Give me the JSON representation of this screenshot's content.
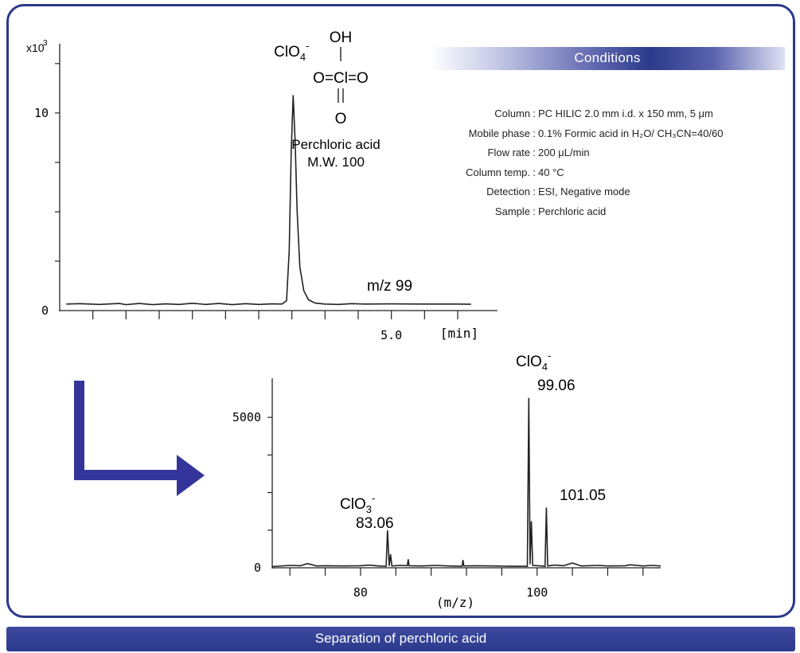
{
  "footer": {
    "title": "Separation of perchloric acid"
  },
  "structure": {
    "top_label": "OH",
    "middle_label": "O=Cl=O",
    "bottom_label": "O",
    "name": "Perchloric acid",
    "mw": "M.W. 100"
  },
  "conditions_title": "Conditions",
  "conditions": [
    {
      "label": "Column",
      "value": "PC HILIC 2.0 mm i.d. x 150 mm, 5 μm"
    },
    {
      "label": "Mobile phase",
      "value": "0.1% Formic acid in H₂O/ CH₃CN=40/60"
    },
    {
      "label": "Flow rate",
      "value": "200 μL/min"
    },
    {
      "label": "Column temp.",
      "value": "40 °C"
    },
    {
      "label": "Detection",
      "value": "ESI, Negative mode"
    },
    {
      "label": "Sample",
      "value": "Perchloric acid"
    }
  ],
  "colors": {
    "frame": "#2b3a8c",
    "arrow": "#34359a",
    "trace": "#222222"
  },
  "chart_data": [
    {
      "type": "line",
      "xlabel": "[min]",
      "ylabel": "",
      "y_multiplier_label": "x10",
      "y_multiplier_exp": "3",
      "x_ticks_labeled": [
        {
          "value": 5.0,
          "label": "5.0"
        }
      ],
      "y_ticks_labeled": [
        {
          "value": 0,
          "label": "0"
        },
        {
          "value": 10,
          "label": "10"
        }
      ],
      "xlim": [
        0,
        6.6
      ],
      "ylim": [
        0,
        13.5
      ],
      "trace_label": "m/z 99",
      "peaks": [
        {
          "label": "ClO",
          "sub": "4",
          "sup": "-",
          "x": 3.53,
          "y": 10.9
        }
      ],
      "series": [
        {
          "values": [
            [
              0.1,
              0.33
            ],
            [
              0.3,
              0.35
            ],
            [
              0.6,
              0.31
            ],
            [
              0.9,
              0.36
            ],
            [
              1.0,
              0.3
            ],
            [
              1.2,
              0.36
            ],
            [
              1.4,
              0.3
            ],
            [
              1.6,
              0.34
            ],
            [
              1.8,
              0.31
            ],
            [
              2.0,
              0.37
            ],
            [
              2.2,
              0.31
            ],
            [
              2.4,
              0.36
            ],
            [
              2.6,
              0.3
            ],
            [
              2.8,
              0.35
            ],
            [
              3.0,
              0.31
            ],
            [
              3.2,
              0.34
            ],
            [
              3.35,
              0.33
            ],
            [
              3.42,
              0.5
            ],
            [
              3.46,
              3.0
            ],
            [
              3.49,
              8.0
            ],
            [
              3.52,
              10.9
            ],
            [
              3.55,
              8.5
            ],
            [
              3.58,
              5.0
            ],
            [
              3.62,
              2.2
            ],
            [
              3.68,
              1.0
            ],
            [
              3.75,
              0.55
            ],
            [
              3.85,
              0.38
            ],
            [
              4.0,
              0.33
            ],
            [
              4.2,
              0.31
            ],
            [
              4.4,
              0.35
            ],
            [
              4.6,
              0.33
            ],
            [
              5.0,
              0.34
            ],
            [
              5.5,
              0.33
            ],
            [
              6.0,
              0.33
            ],
            [
              6.2,
              0.32
            ]
          ]
        }
      ]
    },
    {
      "type": "line",
      "xlabel": "(m/z)",
      "ylabel": "",
      "x_ticks_labeled": [
        {
          "value": 80,
          "label": "80"
        },
        {
          "value": 100,
          "label": "100"
        }
      ],
      "y_ticks_labeled": [
        {
          "value": 0,
          "label": "0"
        },
        {
          "value": 5000,
          "label": "5000"
        }
      ],
      "xlim": [
        70,
        114
      ],
      "ylim": [
        0,
        6300
      ],
      "peaks": [
        {
          "label": "ClO",
          "sub": "4",
          "sup": "-",
          "mz_label": "99.06",
          "x": 99.06,
          "y": 5650
        },
        {
          "label": "",
          "sub": "",
          "sup": "",
          "mz_label": "101.05",
          "x": 101.05,
          "y": 2000
        },
        {
          "label": "ClO",
          "sub": "3",
          "sup": "-",
          "mz_label": "83.06",
          "x": 83.06,
          "y": 1250
        }
      ],
      "series": [
        {
          "values": [
            [
              70.0,
              40
            ],
            [
              72.0,
              80
            ],
            [
              73.2,
              70
            ],
            [
              74.0,
              140
            ],
            [
              75.0,
              60
            ],
            [
              76.0,
              70
            ],
            [
              78.0,
              60
            ],
            [
              80.0,
              70
            ],
            [
              81.0,
              90
            ],
            [
              82.0,
              60
            ],
            [
              82.9,
              50
            ],
            [
              83.06,
              1250
            ],
            [
              83.25,
              60
            ],
            [
              83.4,
              450
            ],
            [
              83.55,
              60
            ],
            [
              84.5,
              80
            ],
            [
              85.3,
              70
            ],
            [
              85.4,
              280
            ],
            [
              85.5,
              70
            ],
            [
              87.0,
              60
            ],
            [
              88.5,
              80
            ],
            [
              90.0,
              60
            ],
            [
              91.5,
              50
            ],
            [
              91.6,
              260
            ],
            [
              91.7,
              60
            ],
            [
              93.0,
              70
            ],
            [
              95.0,
              60
            ],
            [
              97.0,
              50
            ],
            [
              98.9,
              50
            ],
            [
              99.06,
              5650
            ],
            [
              99.2,
              120
            ],
            [
              99.35,
              1550
            ],
            [
              99.5,
              80
            ],
            [
              100.5,
              60
            ],
            [
              100.9,
              50
            ],
            [
              101.05,
              2000
            ],
            [
              101.2,
              60
            ],
            [
              102.0,
              90
            ],
            [
              103.0,
              70
            ],
            [
              104.0,
              160
            ],
            [
              105.0,
              60
            ],
            [
              107.0,
              80
            ],
            [
              108.0,
              60
            ],
            [
              110.0,
              70
            ],
            [
              110.5,
              100
            ],
            [
              112.0,
              60
            ],
            [
              113.0,
              80
            ],
            [
              114.0,
              60
            ]
          ]
        }
      ]
    }
  ]
}
